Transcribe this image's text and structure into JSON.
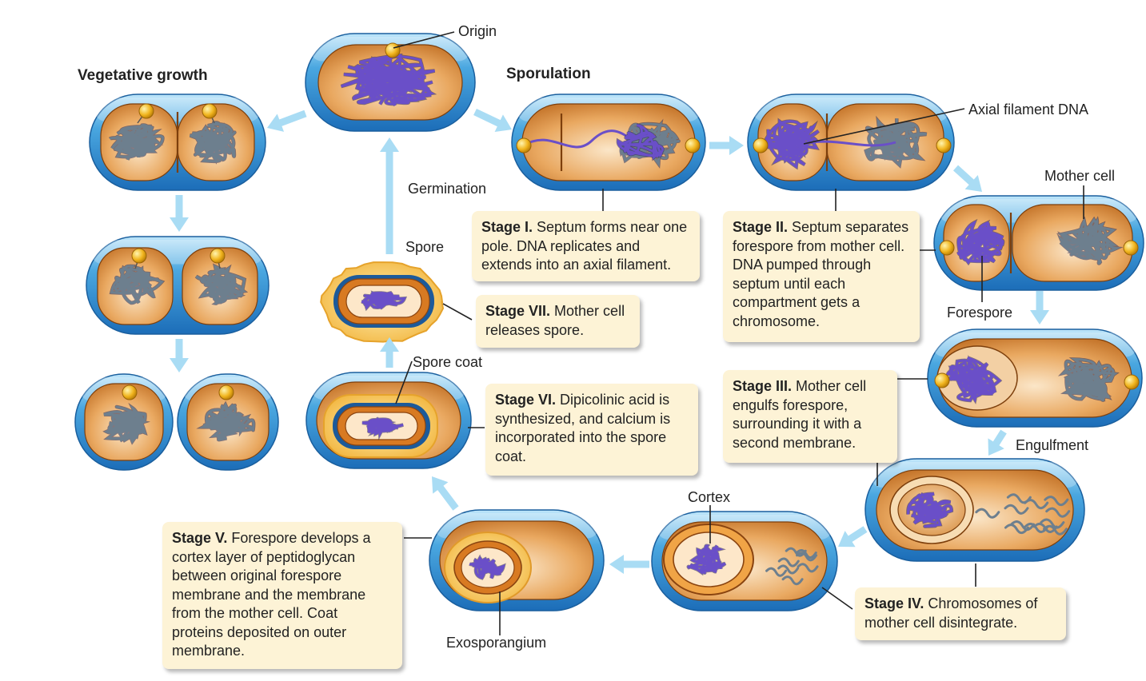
{
  "headings": {
    "vegetative": "Vegetative growth",
    "sporulation": "Sporulation"
  },
  "labels": {
    "origin": "Origin",
    "germination": "Germination",
    "spore": "Spore",
    "spore_coat": "Spore coat",
    "axial_filament": "Axial filament DNA",
    "mother_cell": "Mother cell",
    "forespore": "Forespore",
    "engulfment": "Engulfment",
    "cortex": "Cortex",
    "exosporangium": "Exosporangium"
  },
  "stages": {
    "s1": {
      "title": "Stage I.",
      "text": " Septum forms near one pole. DNA replicates and extends into an axial filament."
    },
    "s2": {
      "title": "Stage II.",
      "text": "  Septum separates forespore from mother cell. DNA pumped through septum until each compartment gets a chromosome."
    },
    "s3": {
      "title": "Stage III.",
      "text": " Mother cell engulfs forespore, surrounding it with a second membrane."
    },
    "s4": {
      "title": "Stage IV.",
      "text": " Chromosomes of mother cell disintegrate."
    },
    "s5": {
      "title": "Stage V.",
      "text": " Forespore develops a cortex layer of peptidoglycan between original forespore membrane and the membrane from the mother cell. Coat proteins deposited on outer membrane."
    },
    "s6": {
      "title": "Stage VI.",
      "text": " Dipicolinic acid is synthesized, and calcium is incorporated into the spore coat."
    },
    "s7": {
      "title": "Stage VII.",
      "text": " Mother cell releases spore."
    }
  },
  "colors": {
    "envelope": "#3f9fdc",
    "cytoplasm": "#c8741f",
    "dna_purple": "#6a4fc8",
    "dna_gray": "#6d7f8e",
    "origin_bead": "#f1b51e",
    "arrow": "#a9dcf4",
    "callout": "#fdf3d6",
    "spore_coat": "#f4c653"
  }
}
